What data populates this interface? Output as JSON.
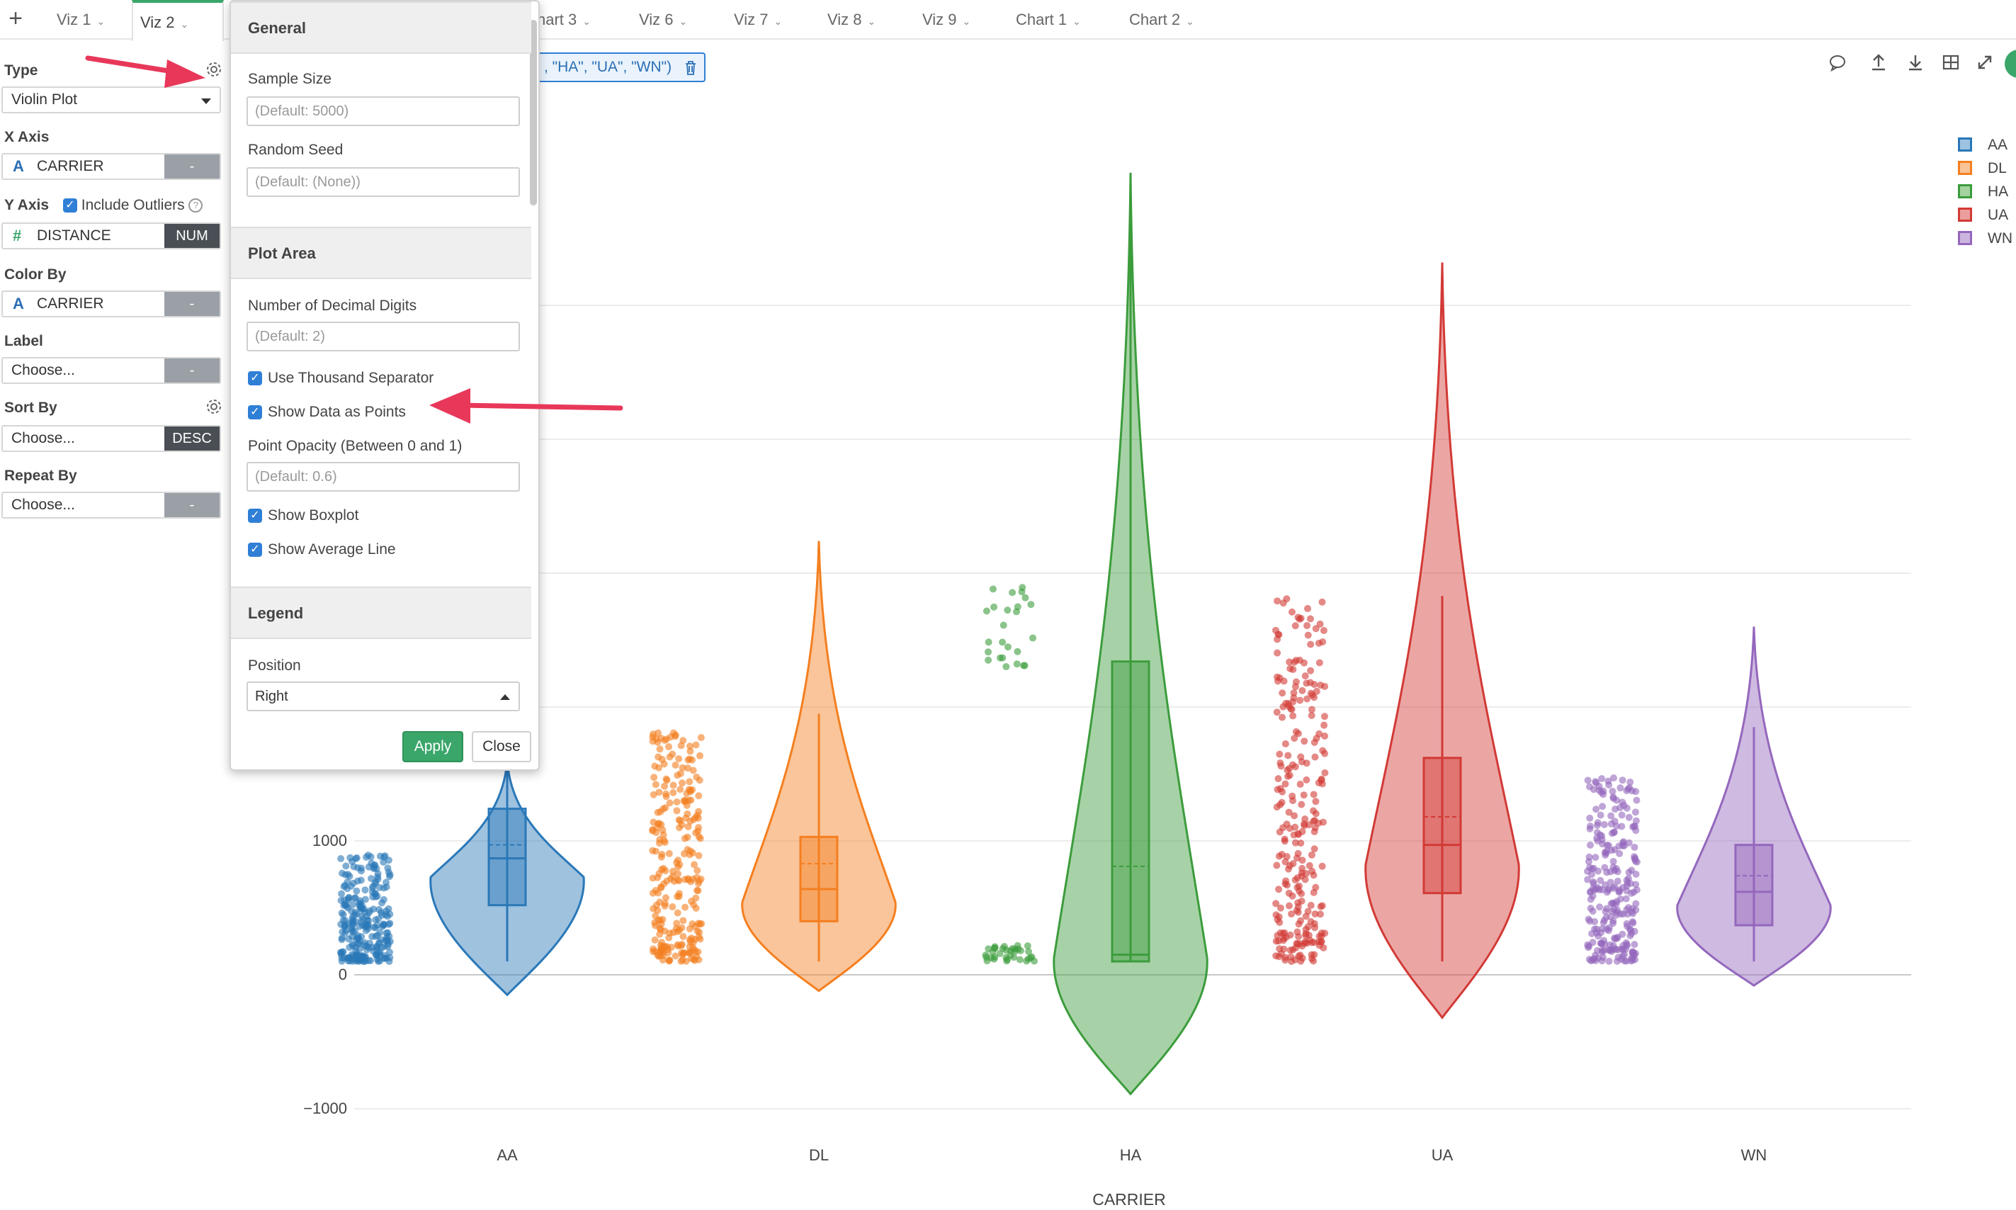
{
  "tabs": {
    "add_label": "+",
    "items": [
      {
        "label": "Viz 1",
        "active": false
      },
      {
        "label": "Viz 2",
        "active": true
      },
      {
        "label": "hart 3",
        "active": false
      },
      {
        "label": "Viz 6",
        "active": false
      },
      {
        "label": "Viz 7",
        "active": false
      },
      {
        "label": "Viz 8",
        "active": false
      },
      {
        "label": "Viz 9",
        "active": false
      },
      {
        "label": "Chart 1",
        "active": false
      },
      {
        "label": "Chart 2",
        "active": false
      }
    ]
  },
  "sidebar": {
    "type_label": "Type",
    "type_value": "Violin Plot",
    "x_axis_label": "X Axis",
    "x_axis_value": "CARRIER",
    "x_axis_badge": "-",
    "y_axis_label": "Y Axis",
    "include_outliers_label": "Include Outliers",
    "y_axis_value": "DISTANCE",
    "y_axis_badge": "NUM",
    "color_by_label": "Color By",
    "color_by_value": "CARRIER",
    "color_by_badge": "-",
    "label_label": "Label",
    "label_value": "Choose...",
    "label_badge": "-",
    "sort_by_label": "Sort By",
    "sort_by_value": "Choose...",
    "sort_by_badge": "DESC",
    "repeat_by_label": "Repeat By",
    "repeat_by_value": "Choose...",
    "repeat_by_badge": "-",
    "icon_a": "A",
    "icon_hash": "#"
  },
  "popover": {
    "general_header": "General",
    "sample_size_label": "Sample Size",
    "sample_size_placeholder": "(Default: 5000)",
    "random_seed_label": "Random Seed",
    "random_seed_placeholder": "(Default: (None))",
    "plot_area_header": "Plot Area",
    "decimal_digits_label": "Number of Decimal Digits",
    "decimal_digits_placeholder": "(Default: 2)",
    "thousand_sep_label": "Use Thousand Separator",
    "show_points_label": "Show Data as Points",
    "point_opacity_label": "Point Opacity (Between 0 and 1)",
    "point_opacity_placeholder": "(Default: 0.6)",
    "show_boxplot_label": "Show Boxplot",
    "show_avg_label": "Show Average Line",
    "legend_header": "Legend",
    "position_label": "Position",
    "position_value": "Right",
    "apply_label": "Apply",
    "close_label": "Close"
  },
  "filter_chip": {
    "text": ", \"HA\", \"UA\", \"WN\")"
  },
  "toolbar_icons": [
    "comment-icon",
    "upload-icon",
    "download-icon",
    "grid-icon",
    "expand-icon"
  ],
  "chart_data": {
    "type": "violin",
    "xlabel": "CARRIER",
    "ylabel": "",
    "categories": [
      "AA",
      "DL",
      "HA",
      "UA",
      "WN"
    ],
    "colors": [
      "#2a78b8",
      "#f47f20",
      "#3c9c3c",
      "#d23a36",
      "#9467bd"
    ],
    "y_ticks": [
      -1000,
      0,
      1000
    ],
    "y_tick_labels": [
      "−1000",
      "0",
      "1000"
    ],
    "ylim": [
      -1000,
      6000
    ],
    "legend_position": "top-right",
    "series": [
      {
        "name": "AA",
        "min": 100,
        "q1": 520,
        "median": 870,
        "q3": 1240,
        "max": 1600,
        "mean": 970,
        "violin_min": -150,
        "violin_max": 1600
      },
      {
        "name": "DL",
        "min": 100,
        "q1": 400,
        "median": 640,
        "q3": 1030,
        "max": 1950,
        "mean": 830,
        "violin_min": -120,
        "violin_max": 3240
      },
      {
        "name": "HA",
        "min": 100,
        "q1": 100,
        "median": 150,
        "q3": 2340,
        "max": 5990,
        "mean": 810,
        "violin_min": -890,
        "violin_max": 5990
      },
      {
        "name": "UA",
        "min": 100,
        "q1": 610,
        "median": 970,
        "q3": 1620,
        "max": 2830,
        "mean": 1180,
        "violin_min": -320,
        "violin_max": 5320
      },
      {
        "name": "WN",
        "min": 100,
        "q1": 370,
        "median": 620,
        "q3": 970,
        "max": 1850,
        "mean": 740,
        "violin_min": -80,
        "violin_max": 2600
      }
    ]
  }
}
